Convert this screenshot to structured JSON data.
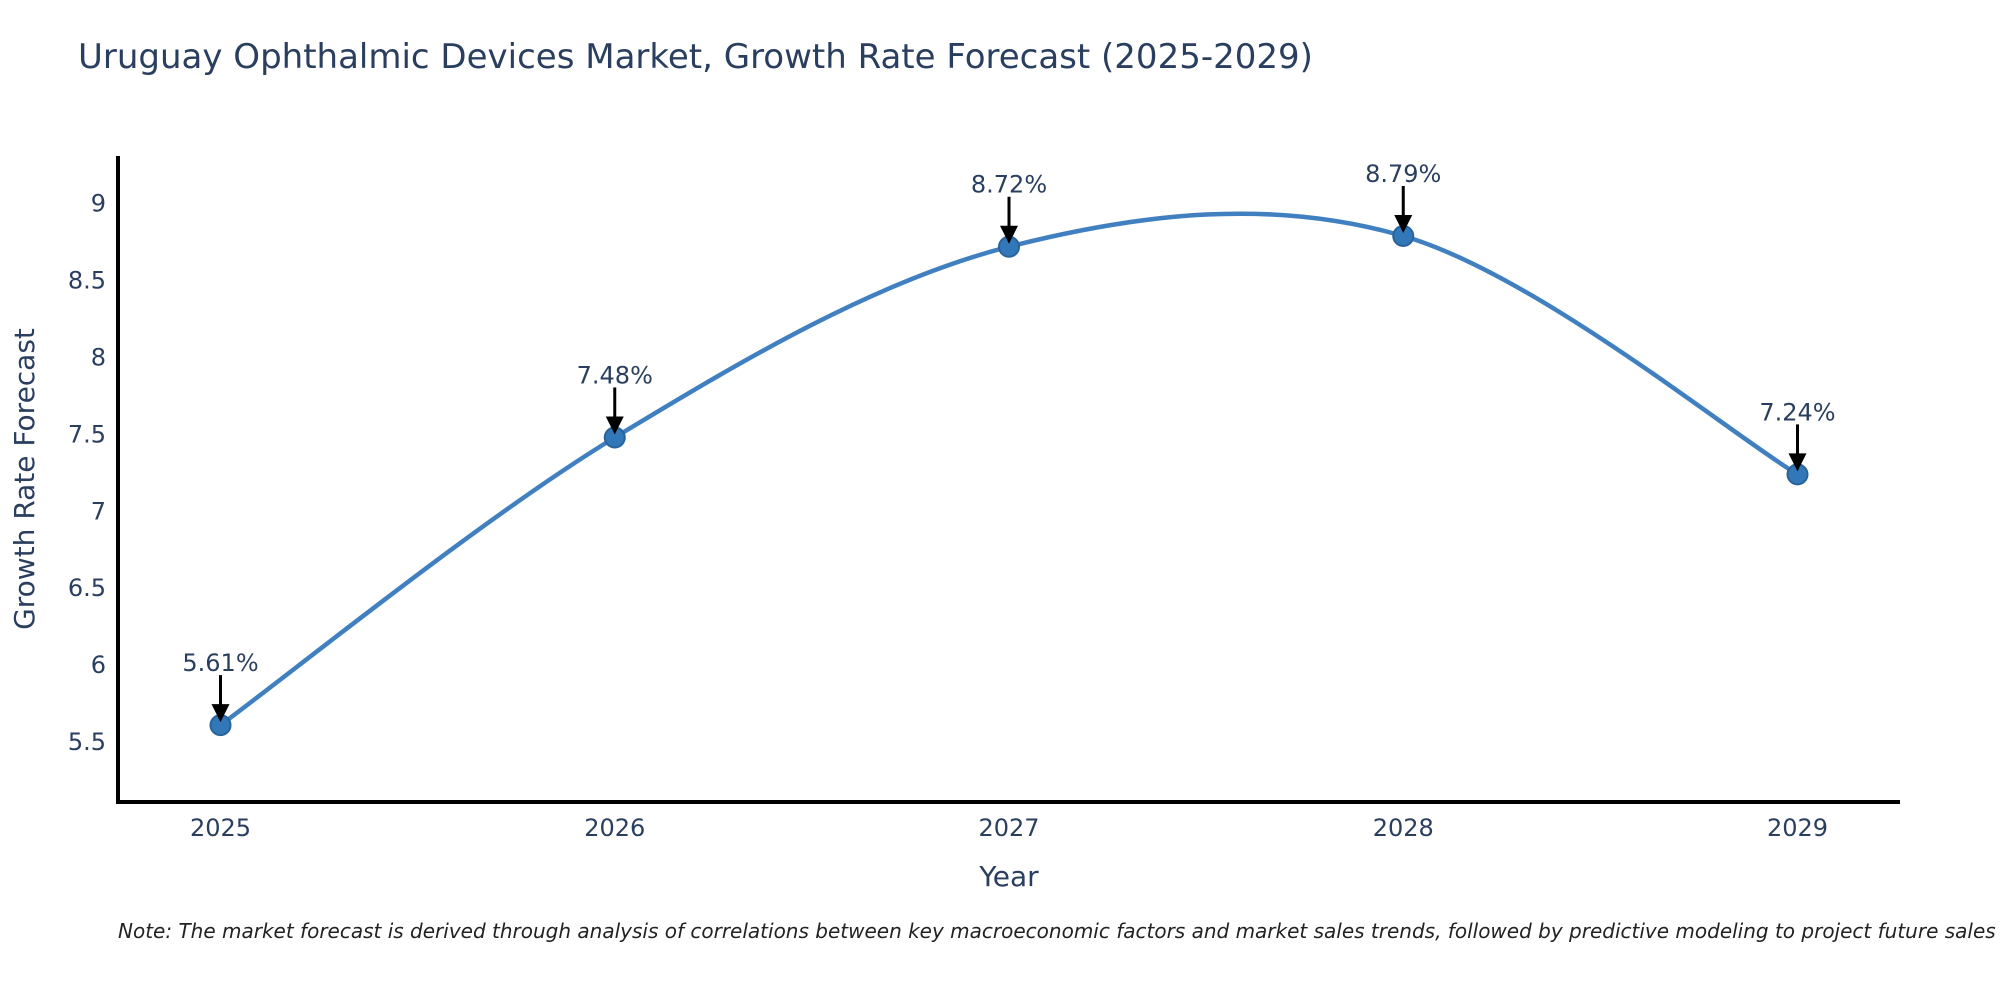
{
  "chart_data": {
    "type": "line",
    "title": "Uruguay Ophthalmic Devices Market, Growth Rate Forecast (2025-2029)",
    "xlabel": "Year",
    "ylabel": "Growth Rate Forecast",
    "x": [
      2025,
      2026,
      2027,
      2028,
      2029
    ],
    "x_tick_labels": [
      "2025",
      "2026",
      "2027",
      "2028",
      "2029"
    ],
    "series": [
      {
        "name": "Growth Rate Forecast",
        "values": [
          5.61,
          7.48,
          8.72,
          8.79,
          7.24
        ]
      }
    ],
    "point_labels": [
      "5.61%",
      "7.48%",
      "8.72%",
      "8.79%",
      "7.24%"
    ],
    "y_ticks": [
      5.5,
      6,
      6.5,
      7,
      7.5,
      8,
      8.5,
      9
    ],
    "y_tick_labels": [
      "5.5",
      "6",
      "6.5",
      "7",
      "7.5",
      "8",
      "8.5",
      "9"
    ],
    "xlim": [
      2024.74,
      2029.26
    ],
    "ylim": [
      5.11,
      9.31
    ],
    "line_shape": "spline",
    "markers": true,
    "grid": false,
    "legend": "none",
    "annotations_have_arrows": true
  },
  "note": {
    "text": "Note: The market forecast is derived through analysis of correlations between key macroeconomic factors and market sales trends, followed by predictive modeling to project future sales"
  },
  "colors": {
    "background": "#ffffff",
    "title_text": "#2a3f5f",
    "axis_text": "#2a3f5f",
    "annotation_text": "#2a3f5f",
    "note_text": "#222222",
    "axis_line": "#000000",
    "arrow": "#000000",
    "line": "#4080c0",
    "marker_fill": "#3277b8",
    "marker_edge": "#2a639a"
  }
}
